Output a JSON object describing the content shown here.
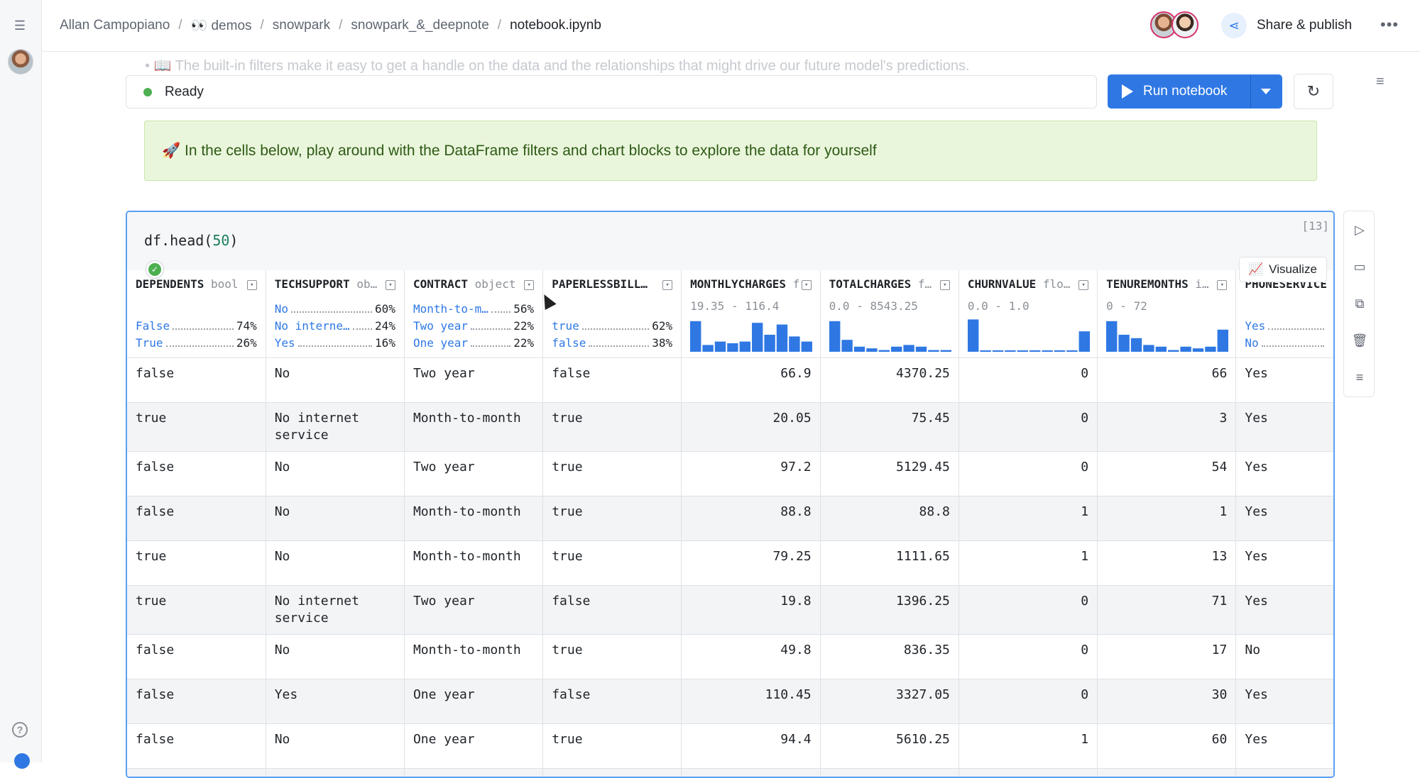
{
  "breadcrumb": {
    "items": [
      "Allan Campopiano",
      "👀 demos",
      "snowpark",
      "snowpark_&_deepnote"
    ],
    "current": "notebook.ipynb",
    "separator": "/"
  },
  "header": {
    "share_label": "Share & publish",
    "more_label": "•••"
  },
  "ghost_text": "• 📖 The built-in filters make it easy to get a handle on the data and the relationships that might drive our future model's predictions.",
  "status": {
    "label": "Ready",
    "color": "#4caf50"
  },
  "run": {
    "label": "Run notebook"
  },
  "callout": {
    "text": "🚀 In the cells below, play around with the DataFrame filters and chart blocks to explore the data for yourself"
  },
  "cell": {
    "code_prefix": "df.head(",
    "code_arg": "50",
    "code_suffix": ")",
    "exec_count": "[13]",
    "visualize_label": "Visualize"
  },
  "columns": [
    {
      "name": "DEPENDENTS",
      "type": "bool",
      "kind": "cat",
      "cats": [
        {
          "label": "False",
          "pct": "74%"
        },
        {
          "label": "True",
          "pct": "26%"
        }
      ]
    },
    {
      "name": "TECHSUPPORT",
      "type": "ob…",
      "kind": "cat",
      "cats": [
        {
          "label": "No",
          "pct": "60%"
        },
        {
          "label": "No interne…",
          "pct": "24%"
        },
        {
          "label": "Yes",
          "pct": "16%"
        }
      ]
    },
    {
      "name": "CONTRACT",
      "type": "object",
      "kind": "cat",
      "cats": [
        {
          "label": "Month-to-m…",
          "pct": "56%"
        },
        {
          "label": "Two year",
          "pct": "22%"
        },
        {
          "label": "One year",
          "pct": "22%"
        }
      ]
    },
    {
      "name": "PAPERLESSBILL…",
      "type": "",
      "kind": "cat",
      "cats": [
        {
          "label": "true",
          "pct": "62%"
        },
        {
          "label": "false",
          "pct": "38%"
        }
      ]
    },
    {
      "name": "MONTHLYCHARGES",
      "type": "f",
      "kind": "num",
      "range": "19.35 - 116.4",
      "hist": [
        0.9,
        0.2,
        0.3,
        0.25,
        0.3,
        0.85,
        0.5,
        0.8,
        0.45,
        0.3
      ]
    },
    {
      "name": "TOTALCHARGES",
      "type": "f…",
      "kind": "num",
      "range": "0.0 - 8543.25",
      "hist": [
        0.9,
        0.35,
        0.15,
        0.1,
        0.05,
        0.15,
        0.2,
        0.15,
        0.05,
        0.05
      ]
    },
    {
      "name": "CHURNVALUE",
      "type": "flo…",
      "kind": "num",
      "range": "0.0 - 1.0",
      "hist": [
        0.95,
        0.03,
        0.03,
        0.03,
        0.03,
        0.03,
        0.03,
        0.03,
        0.03,
        0.6
      ]
    },
    {
      "name": "TENUREMONTHS",
      "type": "i…",
      "kind": "num",
      "range": "0 - 72",
      "hist": [
        0.9,
        0.5,
        0.4,
        0.2,
        0.15,
        0.05,
        0.15,
        0.1,
        0.15,
        0.65
      ]
    },
    {
      "name": "PHONESERVICE",
      "type": "",
      "kind": "cat",
      "cats": [
        {
          "label": "Yes",
          "pct": ""
        },
        {
          "label": "No",
          "pct": ""
        }
      ]
    }
  ],
  "rows": [
    [
      "false",
      "No",
      "Two year",
      "false",
      "66.9",
      "4370.25",
      "0",
      "66",
      "Yes"
    ],
    [
      "true",
      "No internet service",
      "Month-to-month",
      "true",
      "20.05",
      "75.45",
      "0",
      "3",
      "Yes"
    ],
    [
      "false",
      "No",
      "Two year",
      "true",
      "97.2",
      "5129.45",
      "0",
      "54",
      "Yes"
    ],
    [
      "false",
      "No",
      "Month-to-month",
      "true",
      "88.8",
      "88.8",
      "1",
      "1",
      "Yes"
    ],
    [
      "true",
      "No",
      "Month-to-month",
      "true",
      "79.25",
      "1111.65",
      "1",
      "13",
      "Yes"
    ],
    [
      "true",
      "No internet service",
      "Two year",
      "false",
      "19.8",
      "1396.25",
      "0",
      "71",
      "Yes"
    ],
    [
      "false",
      "No",
      "Month-to-month",
      "true",
      "49.8",
      "836.35",
      "0",
      "17",
      "No"
    ],
    [
      "false",
      "Yes",
      "One year",
      "false",
      "110.45",
      "3327.05",
      "0",
      "30",
      "Yes"
    ],
    [
      "false",
      "No",
      "One year",
      "true",
      "94.4",
      "5610.25",
      "1",
      "60",
      "Yes"
    ],
    [
      "",
      "",
      "",
      "",
      "",
      "",
      "",
      "",
      ""
    ]
  ],
  "colors": {
    "accent": "#2f78e4",
    "callout_bg": "#eaf6dc",
    "callout_text": "#2d5a14"
  },
  "icons": {
    "rail_toggle": "sidebar-toggle-icon",
    "share": "share-icon",
    "refresh": "refresh-icon",
    "tools": [
      "play-icon",
      "comment-icon",
      "code-block-icon",
      "trash-icon",
      "menu-icon"
    ]
  }
}
